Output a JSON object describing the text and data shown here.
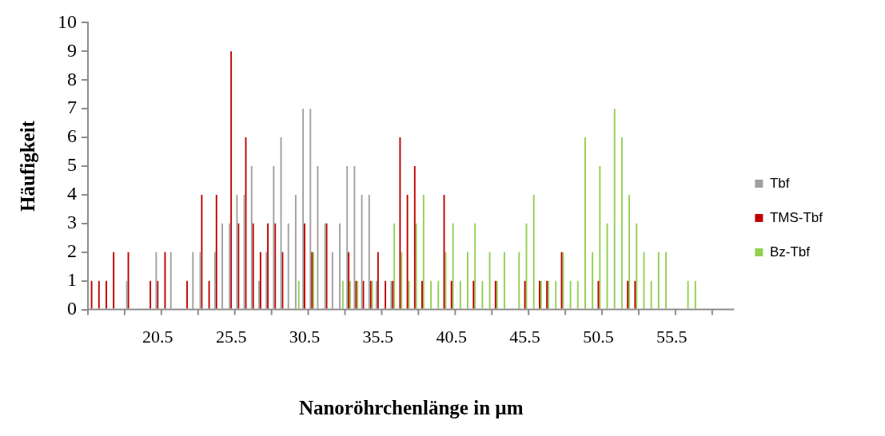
{
  "chart_data": {
    "type": "bar",
    "xlabel": "Nanoröhrchenlänge in µm",
    "ylabel": "Häufigkeit",
    "ylim": [
      0,
      10
    ],
    "yticks": [
      0,
      1,
      2,
      3,
      4,
      5,
      6,
      7,
      8,
      9,
      10
    ],
    "grid": false,
    "legend": "right",
    "categories": [
      null,
      null,
      null,
      null,
      null,
      null,
      null,
      null,
      null,
      "20.5",
      null,
      null,
      null,
      null,
      null,
      null,
      null,
      null,
      null,
      "25.5",
      null,
      null,
      null,
      null,
      null,
      null,
      null,
      null,
      null,
      "30.5",
      null,
      null,
      null,
      null,
      null,
      null,
      null,
      null,
      null,
      "35.5",
      null,
      null,
      null,
      null,
      null,
      null,
      null,
      null,
      null,
      "40.5",
      null,
      null,
      null,
      null,
      null,
      null,
      null,
      null,
      null,
      "45.5",
      null,
      null,
      null,
      null,
      null,
      null,
      null,
      null,
      null,
      "50.5",
      null,
      null,
      null,
      null,
      null,
      null,
      null,
      null,
      null,
      "55.5",
      null,
      null,
      null,
      null,
      null,
      null,
      null,
      null
    ],
    "series": [
      {
        "name": "Tbf",
        "color": "#a0a0a0",
        "values": [
          null,
          null,
          null,
          null,
          null,
          1,
          null,
          null,
          null,
          2,
          null,
          2,
          null,
          null,
          2,
          2,
          null,
          2,
          3,
          3,
          4,
          4,
          5,
          1,
          2,
          5,
          6,
          3,
          4,
          7,
          7,
          5,
          3,
          2,
          3,
          5,
          5,
          4,
          4,
          1,
          null,
          1,
          null,
          null,
          null,
          null,
          null,
          null,
          null,
          null,
          null,
          null,
          null,
          null,
          null,
          null,
          null,
          null,
          null,
          null,
          null,
          null,
          null,
          null,
          null,
          null,
          null,
          null,
          null,
          null,
          null,
          null,
          null,
          null,
          null,
          null,
          null,
          null,
          null,
          null,
          null,
          null,
          null,
          null,
          null,
          null,
          null,
          null
        ]
      },
      {
        "name": "TMS-Tbf",
        "color": "#c00000",
        "values": [
          1,
          1,
          1,
          2,
          null,
          2,
          null,
          null,
          1,
          1,
          2,
          null,
          null,
          1,
          null,
          4,
          1,
          4,
          null,
          9,
          3,
          6,
          3,
          2,
          3,
          3,
          2,
          null,
          null,
          3,
          2,
          null,
          3,
          null,
          null,
          2,
          1,
          1,
          1,
          2,
          1,
          1,
          6,
          4,
          5,
          1,
          null,
          null,
          4,
          1,
          null,
          null,
          1,
          null,
          null,
          1,
          null,
          null,
          null,
          1,
          null,
          1,
          1,
          null,
          2,
          null,
          null,
          null,
          null,
          1,
          null,
          null,
          null,
          1,
          1,
          null,
          null,
          null,
          null,
          null,
          null,
          null,
          null,
          null,
          null,
          null,
          null,
          null
        ]
      },
      {
        "name": "Bz-Tbf",
        "color": "#92d050",
        "values": [
          null,
          null,
          null,
          null,
          null,
          null,
          null,
          null,
          null,
          null,
          null,
          null,
          null,
          null,
          null,
          null,
          null,
          null,
          null,
          null,
          null,
          null,
          null,
          null,
          null,
          null,
          null,
          null,
          1,
          null,
          2,
          null,
          null,
          null,
          1,
          1,
          1,
          null,
          1,
          null,
          null,
          3,
          2,
          1,
          3,
          4,
          1,
          1,
          2,
          3,
          1,
          2,
          3,
          1,
          2,
          1,
          2,
          null,
          2,
          3,
          4,
          1,
          1,
          1,
          2,
          1,
          1,
          6,
          2,
          5,
          3,
          7,
          6,
          4,
          3,
          2,
          1,
          2,
          2,
          null,
          null,
          1,
          1,
          null,
          null,
          null,
          null,
          null
        ]
      }
    ]
  }
}
